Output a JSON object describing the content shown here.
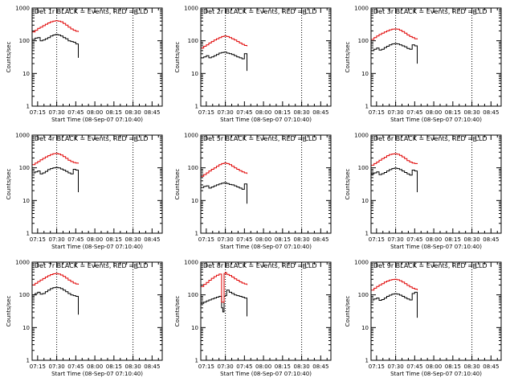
{
  "figure": {
    "background": "#ffffff",
    "colors": {
      "events": "#000000",
      "lld": "#e00000",
      "axes": "#000000"
    },
    "marker_letter": "E",
    "xlabel": "Start Time (08-Sep-07 07:10:40)",
    "ylabel": "Counts/sec",
    "x_tick_labels": [
      "07:15",
      "07:30",
      "07:45",
      "08:00",
      "08:15",
      "08:30",
      "08:45"
    ],
    "y_tick_labels": [
      "1",
      "10",
      "100",
      "1000"
    ],
    "x_tick_minutes": [
      15,
      30,
      45,
      60,
      75,
      90,
      105
    ],
    "vline_minutes": [
      30,
      90
    ],
    "xlim_minutes": [
      10.67,
      113
    ],
    "ylim": [
      1,
      1000
    ],
    "yscale": "log"
  },
  "chart_data": [
    {
      "type": "line",
      "title": "Det 1r BLACK = Events, RED = LLD",
      "xlabel": "Start Time (08-Sep-07 07:10:40)",
      "ylabel": "Counts/sec",
      "x": [
        11,
        13,
        15,
        17,
        19,
        21,
        23,
        25,
        27,
        29,
        31,
        33,
        35,
        37,
        39,
        41,
        43,
        45,
        47
      ],
      "series": [
        {
          "name": "BLACK = Events",
          "values": [
            110,
            120,
            125,
            100,
            105,
            115,
            125,
            140,
            150,
            155,
            150,
            140,
            125,
            115,
            100,
            95,
            90,
            80,
            30
          ]
        },
        {
          "name": "RED = LLD",
          "values": [
            185,
            210,
            240,
            260,
            290,
            320,
            350,
            380,
            400,
            410,
            400,
            380,
            340,
            300,
            260,
            230,
            210,
            195,
            185
          ]
        }
      ]
    },
    {
      "type": "line",
      "title": "Det 2r BLACK = Events, RED = LLD",
      "xlabel": "Start Time (08-Sep-07 07:10:40)",
      "ylabel": "Counts/sec",
      "x": [
        11,
        13,
        15,
        17,
        19,
        21,
        23,
        25,
        27,
        29,
        31,
        33,
        35,
        37,
        39,
        41,
        43,
        45,
        47
      ],
      "series": [
        {
          "name": "BLACK = Events",
          "values": [
            30,
            32,
            35,
            30,
            32,
            35,
            38,
            42,
            44,
            45,
            42,
            40,
            38,
            35,
            32,
            30,
            28,
            40,
            12
          ]
        },
        {
          "name": "RED = LLD",
          "values": [
            60,
            68,
            75,
            85,
            95,
            105,
            115,
            125,
            135,
            140,
            135,
            125,
            115,
            105,
            95,
            85,
            78,
            72,
            68
          ]
        }
      ]
    },
    {
      "type": "line",
      "title": "Det 3r BLACK = Events, RED = LLD",
      "xlabel": "Start Time (08-Sep-07 07:10:40)",
      "ylabel": "Counts/sec",
      "x": [
        11,
        13,
        15,
        17,
        19,
        21,
        23,
        25,
        27,
        29,
        31,
        33,
        35,
        37,
        39,
        41,
        43,
        45,
        47
      ],
      "series": [
        {
          "name": "BLACK = Events",
          "values": [
            50,
            55,
            60,
            52,
            55,
            62,
            68,
            75,
            80,
            82,
            80,
            75,
            70,
            65,
            58,
            55,
            75,
            70,
            20
          ]
        },
        {
          "name": "RED = LLD",
          "values": [
            110,
            125,
            140,
            155,
            170,
            185,
            200,
            215,
            225,
            230,
            225,
            210,
            190,
            170,
            150,
            135,
            125,
            115,
            110
          ]
        }
      ]
    },
    {
      "type": "line",
      "title": "Det 4r BLACK = Events, RED = LLD",
      "xlabel": "Start Time (08-Sep-07 07:10:40)",
      "ylabel": "Counts/sec",
      "x": [
        11,
        13,
        15,
        17,
        19,
        21,
        23,
        25,
        27,
        29,
        31,
        33,
        35,
        37,
        39,
        41,
        43,
        45,
        47
      ],
      "series": [
        {
          "name": "BLACK = Events",
          "values": [
            70,
            75,
            80,
            65,
            70,
            78,
            88,
            95,
            100,
            102,
            100,
            92,
            85,
            78,
            70,
            65,
            90,
            85,
            18
          ]
        },
        {
          "name": "RED = LLD",
          "values": [
            125,
            140,
            155,
            175,
            195,
            215,
            235,
            255,
            270,
            275,
            265,
            245,
            220,
            195,
            170,
            155,
            145,
            140,
            135
          ]
        }
      ]
    },
    {
      "type": "line",
      "title": "Det 5r BLACK = Events, RED = LLD",
      "xlabel": "Start Time (08-Sep-07 07:10:40)",
      "ylabel": "Counts/sec",
      "x": [
        11,
        13,
        15,
        17,
        19,
        21,
        23,
        25,
        27,
        29,
        31,
        33,
        35,
        37,
        39,
        41,
        43,
        45,
        47
      ],
      "series": [
        {
          "name": "BLACK = Events",
          "values": [
            25,
            27,
            28,
            24,
            26,
            28,
            30,
            32,
            34,
            35,
            33,
            31,
            30,
            28,
            26,
            24,
            22,
            32,
            8
          ]
        },
        {
          "name": "RED = LLD",
          "values": [
            55,
            62,
            70,
            80,
            90,
            100,
            112,
            125,
            135,
            140,
            135,
            125,
            112,
            100,
            90,
            82,
            75,
            70,
            65
          ]
        }
      ]
    },
    {
      "type": "line",
      "title": "Det 6r BLACK = Events, RED = LLD",
      "xlabel": "Start Time (08-Sep-07 07:10:40)",
      "ylabel": "Counts/sec",
      "x": [
        11,
        13,
        15,
        17,
        19,
        21,
        23,
        25,
        27,
        29,
        31,
        33,
        35,
        37,
        39,
        41,
        43,
        45,
        47
      ],
      "series": [
        {
          "name": "BLACK = Events",
          "values": [
            65,
            70,
            75,
            62,
            66,
            72,
            80,
            88,
            95,
            98,
            95,
            88,
            80,
            72,
            65,
            60,
            85,
            80,
            18
          ]
        },
        {
          "name": "RED = LLD",
          "values": [
            120,
            135,
            150,
            170,
            190,
            210,
            235,
            255,
            265,
            270,
            260,
            240,
            215,
            190,
            165,
            150,
            140,
            135,
            130
          ]
        }
      ]
    },
    {
      "type": "line",
      "title": "Det 7r BLACK = Events, RED = LLD",
      "xlabel": "Start Time (08-Sep-07 07:10:40)",
      "ylabel": "Counts/sec",
      "x": [
        11,
        13,
        15,
        17,
        19,
        21,
        23,
        25,
        27,
        29,
        31,
        33,
        35,
        37,
        39,
        41,
        43,
        45,
        47
      ],
      "series": [
        {
          "name": "BLACK = Events",
          "values": [
            100,
            110,
            120,
            105,
            110,
            125,
            140,
            155,
            165,
            170,
            165,
            155,
            140,
            125,
            110,
            100,
            95,
            90,
            25
          ]
        },
        {
          "name": "RED = LLD",
          "values": [
            200,
            225,
            255,
            285,
            315,
            350,
            385,
            415,
            440,
            450,
            435,
            405,
            365,
            325,
            285,
            255,
            230,
            215,
            205
          ]
        }
      ]
    },
    {
      "type": "line",
      "title": "Det 8r BLACK = Events, RED = LLD",
      "xlabel": "Start Time (08-Sep-07 07:10:40)",
      "ylabel": "Counts/sec",
      "x": [
        11,
        13,
        15,
        17,
        19,
        21,
        23,
        25,
        27,
        28,
        29,
        30,
        31,
        33,
        35,
        37,
        39,
        41,
        43,
        45,
        47
      ],
      "series": [
        {
          "name": "BLACK = Events",
          "values": [
            55,
            60,
            65,
            70,
            75,
            80,
            85,
            90,
            40,
            30,
            90,
            95,
            140,
            120,
            110,
            100,
            95,
            90,
            85,
            80,
            22
          ]
        },
        {
          "name": "RED = LLD",
          "values": [
            180,
            210,
            240,
            280,
            320,
            360,
            400,
            430,
            60,
            60,
            450,
            480,
            420,
            390,
            350,
            310,
            280,
            250,
            230,
            215,
            200
          ]
        }
      ]
    },
    {
      "type": "line",
      "title": "Det 9r BLACK = Events, RED = LLD",
      "xlabel": "Start Time (08-Sep-07 07:10:40)",
      "ylabel": "Counts/sec",
      "x": [
        11,
        13,
        15,
        17,
        19,
        21,
        23,
        25,
        27,
        29,
        31,
        33,
        35,
        37,
        39,
        41,
        43,
        45,
        47
      ],
      "series": [
        {
          "name": "BLACK = Events",
          "values": [
            70,
            75,
            80,
            68,
            72,
            80,
            90,
            98,
            105,
            108,
            105,
            98,
            90,
            82,
            75,
            70,
            110,
            120,
            20
          ]
        },
        {
          "name": "RED = LLD",
          "values": [
            140,
            160,
            180,
            200,
            220,
            245,
            265,
            285,
            295,
            300,
            290,
            270,
            245,
            220,
            195,
            175,
            160,
            150,
            140
          ]
        }
      ]
    }
  ]
}
